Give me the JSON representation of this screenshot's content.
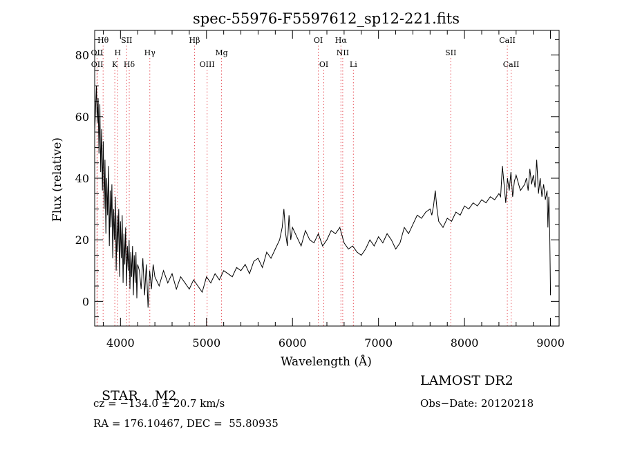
{
  "chart_data": {
    "type": "line",
    "title": "spec-55976-F5597612_sp12-221.fits",
    "xlabel": "Wavelength (Å)",
    "ylabel": "Flux (relative)",
    "xlim": [
      3700,
      9100
    ],
    "ylim": [
      -8,
      88
    ],
    "x_ticks": [
      4000,
      5000,
      6000,
      7000,
      8000,
      9000
    ],
    "y_ticks": [
      0,
      20,
      40,
      60,
      80
    ],
    "grid": false,
    "line_color": "#000000",
    "marker_color": "#e8545c",
    "lines": [
      {
        "label": "Hθ",
        "x": 3798,
        "row": 1
      },
      {
        "label": "OII",
        "x": 3727,
        "row": 2
      },
      {
        "label": "OII",
        "x": 3729,
        "row": 3
      },
      {
        "label": "H",
        "x": 3968,
        "row": 2
      },
      {
        "label": "K",
        "x": 3934,
        "row": 3
      },
      {
        "label": "SII",
        "x": 4072,
        "row": 1
      },
      {
        "label": "Hδ",
        "x": 4102,
        "row": 3
      },
      {
        "label": "Hγ",
        "x": 4341,
        "row": 2
      },
      {
        "label": "Hβ",
        "x": 4861,
        "row": 1
      },
      {
        "label": "OIII",
        "x": 5007,
        "row": 3
      },
      {
        "label": "Mg",
        "x": 5175,
        "row": 2
      },
      {
        "label": "OI",
        "x": 6300,
        "row": 1
      },
      {
        "label": "OI",
        "x": 6364,
        "row": 3
      },
      {
        "label": "Hα",
        "x": 6563,
        "row": 1
      },
      {
        "label": "NII",
        "x": 6584,
        "row": 2
      },
      {
        "label": "Li",
        "x": 6708,
        "row": 3
      },
      {
        "label": "SII",
        "x": 7840,
        "row": 2
      },
      {
        "label": "CaII",
        "x": 8498,
        "row": 1
      },
      {
        "label": "CaII",
        "x": 8542,
        "row": 3
      }
    ],
    "series": [
      {
        "x": [
          3700,
          3710,
          3720,
          3730,
          3740,
          3750,
          3760,
          3770,
          3780,
          3790,
          3800,
          3810,
          3820,
          3830,
          3840,
          3850,
          3860,
          3870,
          3880,
          3890,
          3900,
          3910,
          3920,
          3930,
          3940,
          3950,
          3960,
          3970,
          3980,
          3990,
          4000,
          4010,
          4020,
          4030,
          4040,
          4050,
          4060,
          4070,
          4080,
          4090,
          4100,
          4110,
          4120,
          4130,
          4140,
          4150,
          4160,
          4170,
          4180,
          4190,
          4200,
          4220,
          4240,
          4260,
          4280,
          4300,
          4320,
          4340,
          4360,
          4380,
          4400,
          4450,
          4500,
          4550,
          4600,
          4650,
          4700,
          4750,
          4800,
          4850,
          4900,
          4950,
          5000,
          5050,
          5100,
          5150,
          5200,
          5250,
          5300,
          5350,
          5400,
          5450,
          5500,
          5550,
          5600,
          5650,
          5700,
          5750,
          5800,
          5850,
          5880,
          5900,
          5920,
          5940,
          5960,
          5980,
          6000,
          6050,
          6100,
          6150,
          6200,
          6250,
          6300,
          6350,
          6400,
          6450,
          6500,
          6550,
          6600,
          6650,
          6700,
          6750,
          6800,
          6850,
          6900,
          6950,
          7000,
          7050,
          7100,
          7150,
          7200,
          7250,
          7300,
          7350,
          7400,
          7450,
          7500,
          7550,
          7600,
          7620,
          7640,
          7660,
          7680,
          7700,
          7750,
          7800,
          7850,
          7900,
          7950,
          8000,
          8050,
          8100,
          8150,
          8200,
          8250,
          8300,
          8350,
          8400,
          8420,
          8440,
          8460,
          8480,
          8500,
          8520,
          8540,
          8560,
          8580,
          8600,
          8650,
          8700,
          8720,
          8740,
          8760,
          8780,
          8800,
          8820,
          8840,
          8860,
          8880,
          8900,
          8920,
          8940,
          8960,
          8970,
          8980,
          8990,
          9000
        ],
        "y": [
          55,
          62,
          70,
          58,
          66,
          48,
          64,
          42,
          56,
          36,
          52,
          30,
          46,
          22,
          40,
          28,
          44,
          18,
          36,
          24,
          38,
          14,
          30,
          20,
          34,
          10,
          28,
          16,
          30,
          8,
          26,
          14,
          28,
          6,
          22,
          12,
          24,
          5,
          18,
          10,
          20,
          4,
          16,
          8,
          18,
          2,
          15,
          6,
          16,
          1,
          12,
          10,
          4,
          14,
          2,
          12,
          -2,
          10,
          4,
          12,
          8,
          5,
          10,
          6,
          9,
          4,
          8,
          6,
          4,
          7,
          5,
          3,
          8,
          6,
          9,
          7,
          10,
          9,
          8,
          11,
          10,
          12,
          9,
          13,
          14,
          11,
          16,
          14,
          17,
          20,
          24,
          30,
          22,
          18,
          28,
          20,
          24,
          21,
          18,
          23,
          20,
          19,
          22,
          18,
          20,
          23,
          22,
          24,
          19,
          17,
          18,
          16,
          15,
          17,
          20,
          18,
          21,
          19,
          22,
          20,
          17,
          19,
          24,
          22,
          25,
          28,
          27,
          29,
          30,
          28,
          31,
          36,
          30,
          26,
          24,
          27,
          26,
          29,
          28,
          31,
          30,
          32,
          31,
          33,
          32,
          34,
          33,
          35,
          34,
          44,
          38,
          32,
          40,
          36,
          42,
          34,
          39,
          41,
          36,
          38,
          40,
          36,
          43,
          38,
          41,
          37,
          46,
          35,
          40,
          34,
          38,
          33,
          36,
          24,
          34,
          25,
          2
        ]
      }
    ]
  },
  "info": {
    "object_class": "STAR",
    "subclass": "M2",
    "survey": "LAMOST DR2",
    "cz": "cz = −134.0 ± 20.7 km/s",
    "obs_date": "Obs−Date: 20120218",
    "coords": "RA = 176.10467, DEC =  55.80935"
  }
}
